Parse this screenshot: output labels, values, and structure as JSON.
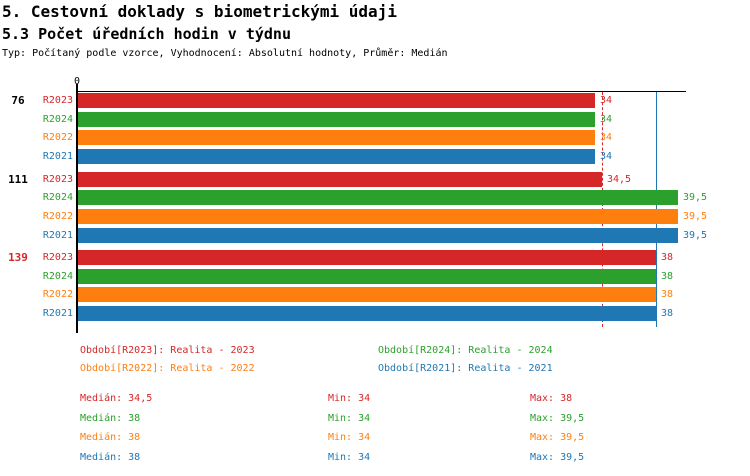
{
  "header": {
    "title": "5. Cestovní doklady s biometrickými údaji",
    "subtitle": "5.3 Počet úředních hodin v týdnu",
    "meta": "Typ: Počítaný podle vzorce, Vyhodnocení: Absolutní hodnoty, Průměr: Medián"
  },
  "chart_data": {
    "type": "bar",
    "orientation": "horizontal",
    "value_axis": {
      "min": 0,
      "max": 40,
      "origin_tick_label": "0"
    },
    "grid": "off",
    "series": [
      {
        "id": "R2023",
        "label": "R2023",
        "color": "#d62728",
        "legend": "Období[R2023]: Realita - 2023"
      },
      {
        "id": "R2024",
        "label": "R2024",
        "color": "#2ca02c",
        "legend": "Období[R2024]: Realita - 2024"
      },
      {
        "id": "R2022",
        "label": "R2022",
        "color": "#ff7f0e",
        "legend": "Období[R2022]: Realita - 2022"
      },
      {
        "id": "R2021",
        "label": "R2021",
        "color": "#1f77b4",
        "legend": "Období[R2021]: Realita - 2021"
      }
    ],
    "groups": [
      {
        "label": "76",
        "label_color": "#000000",
        "values": [
          34,
          34,
          34,
          34
        ],
        "value_labels": [
          "34",
          "34",
          "34",
          "34"
        ]
      },
      {
        "label": "111",
        "label_color": "#000000",
        "values": [
          34.5,
          39.5,
          39.5,
          39.5
        ],
        "value_labels": [
          "34,5",
          "39,5",
          "39,5",
          "39,5"
        ]
      },
      {
        "label": "139",
        "label_color": "#d62728",
        "values": [
          38,
          38,
          38,
          38
        ],
        "value_labels": [
          "38",
          "38",
          "38",
          "38"
        ]
      }
    ],
    "guide_lines": [
      {
        "value": 34.5,
        "color": "#d62728",
        "style": "dashed"
      },
      {
        "value": 38,
        "color": "#1f77b4",
        "style": "solid"
      }
    ],
    "stats": [
      {
        "series": "R2023",
        "color": "#d62728",
        "median": "Medián: 34,5",
        "min": "Min: 34",
        "max": "Max: 38"
      },
      {
        "series": "R2024",
        "color": "#2ca02c",
        "median": "Medián: 38",
        "min": "Min: 34",
        "max": "Max: 39,5"
      },
      {
        "series": "R2022",
        "color": "#ff7f0e",
        "median": "Medián: 38",
        "min": "Min: 34",
        "max": "Max: 39,5"
      },
      {
        "series": "R2021",
        "color": "#1f77b4",
        "median": "Medián: 38",
        "min": "Min: 34",
        "max": "Max: 39,5"
      }
    ]
  }
}
